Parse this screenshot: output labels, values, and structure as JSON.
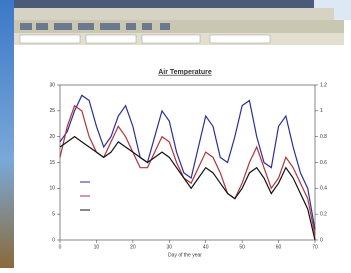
{
  "chart_data": {
    "type": "line",
    "title": "Air Temperature",
    "x_label": "Day of the year",
    "x": [
      0,
      2,
      4,
      6,
      8,
      10,
      12,
      14,
      16,
      18,
      20,
      22,
      24,
      26,
      28,
      30,
      32,
      34,
      36,
      38,
      40,
      42,
      44,
      46,
      48,
      50,
      52,
      54,
      56,
      58,
      60,
      62,
      64,
      66,
      68,
      70
    ],
    "series": [
      {
        "color": "#2a2f9c",
        "values": [
          19,
          21,
          25,
          28,
          27,
          22,
          18,
          20,
          24,
          26,
          22,
          16,
          15,
          20,
          25,
          23,
          17,
          13,
          12,
          18,
          24,
          22,
          16,
          15,
          20,
          26,
          27,
          20,
          15,
          14,
          22,
          24,
          18,
          13,
          10,
          2
        ]
      },
      {
        "color": "#b0343a",
        "values": [
          16,
          22,
          26,
          25,
          20,
          17,
          16,
          19,
          22,
          20,
          17,
          14,
          14,
          17,
          20,
          19,
          15,
          12,
          11,
          14,
          17,
          16,
          13,
          9,
          8,
          11,
          15,
          18,
          14,
          10,
          12,
          16,
          14,
          11,
          8,
          1
        ]
      },
      {
        "color": "#111111",
        "values": [
          18,
          19,
          20,
          19,
          18,
          17,
          16,
          17,
          19,
          18,
          17,
          16,
          15,
          16,
          17,
          16,
          14,
          12,
          10,
          12,
          14,
          13,
          11,
          9,
          8,
          10,
          13,
          14,
          12,
          9,
          11,
          14,
          12,
          9,
          6,
          0
        ]
      }
    ],
    "xlim": [
      0,
      70
    ],
    "xticks": [
      0,
      10,
      20,
      30,
      40,
      50,
      60,
      70
    ],
    "ylim": [
      0,
      30
    ],
    "yticks": [
      0,
      5,
      10,
      15,
      20,
      25,
      30
    ],
    "y2lim": [
      0,
      1.2
    ],
    "y2ticks": [
      0,
      0.2,
      0.4,
      0.6,
      0.8,
      1,
      1.2
    ]
  }
}
